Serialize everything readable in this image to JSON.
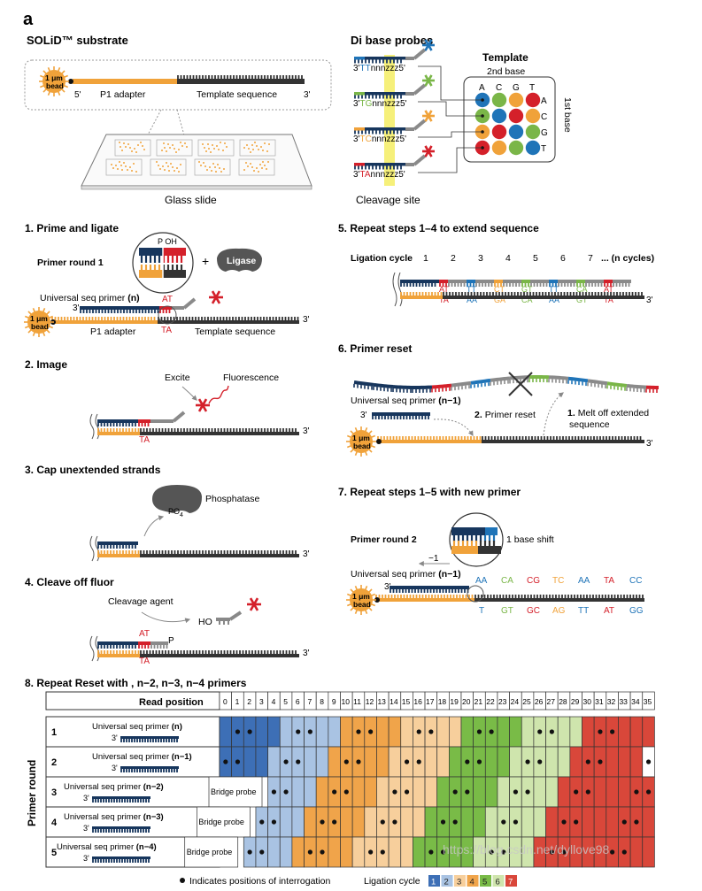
{
  "figure_letter": "a",
  "colors": {
    "navy": "#17365d",
    "orange": "#f0a23a",
    "dark": "#333333",
    "gray": "#8a8a8a",
    "red": "#d4202a",
    "blue": "#1f74b8",
    "green": "#7ab648",
    "yellow_highlight": "#f6f07a",
    "grid_blue_dark": "#3d6fb6",
    "grid_blue_light": "#a9c3e3",
    "grid_orange_light": "#f7cf9c",
    "grid_orange": "#f0a44a",
    "grid_green_dark": "#79bb47",
    "grid_green_light": "#cfe5ad",
    "grid_red": "#d9473a"
  },
  "substrate": {
    "title": "SOLiD™ substrate",
    "bead_line1": "1 μm",
    "bead_line2": "bead",
    "five_prime": "5'",
    "three_prime": "3'",
    "p1_adapter": "P1 adapter",
    "template_sequence": "Template sequence",
    "glass_slide": "Glass slide"
  },
  "probes": {
    "title": "Di base probes",
    "template_title": "Template",
    "second_base": "2nd base",
    "first_base": "1st base",
    "cleavage_site": "Cleavage site",
    "probe_labels": [
      {
        "prefix": "3'",
        "bases": "TT",
        "rest": "nnnzzz5'",
        "color": "#1f74b8"
      },
      {
        "prefix": "3'",
        "bases": "TG",
        "rest": "nnnzzz5'",
        "color": "#7ab648"
      },
      {
        "prefix": "3'",
        "bases": "TC",
        "rest": "nnnzzz5'",
        "color": "#f0a23a"
      },
      {
        "prefix": "3'",
        "bases": "TA",
        "rest": "nnnzzz5'",
        "color": "#d4202a"
      }
    ],
    "columns": [
      "A",
      "C",
      "G",
      "T"
    ],
    "rows": [
      "A",
      "C",
      "G",
      "T"
    ]
  },
  "step1": {
    "title": "1. Prime and ligate",
    "primer_round": "Primer round 1",
    "p_oh": "P OH",
    "plus": "+",
    "ligase": "Ligase",
    "universal_primer": "Universal seq primer ",
    "universal_primer_n": "(n)",
    "three_prime": "3'",
    "at": "AT",
    "ta": "TA",
    "p1_adapter": "P1 adapter",
    "template_sequence": "Template sequence"
  },
  "step2": {
    "title": "2. Image",
    "excite": "Excite",
    "fluorescence": "Fluorescence",
    "ta": "TA",
    "three_prime": "3'"
  },
  "step3": {
    "title": "3. Cap unextended strands",
    "phosphatase": "Phosphatase",
    "po4": "PO",
    "po4_sub": "4",
    "three_prime": "3'"
  },
  "step4": {
    "title": "4. Cleave off fluor",
    "cleavage_agent": "Cleavage agent",
    "ho": "HO",
    "at": "AT",
    "p": "P",
    "ta": "TA",
    "three_prime": "3'"
  },
  "step5": {
    "title": "5. Repeat steps 1–4 to extend sequence",
    "ligation_cycle": "Ligation cycle",
    "cycle_numbers": [
      "1",
      "2",
      "3",
      "4",
      "5",
      "6",
      "7"
    ],
    "n_cycles": "... (n cycles)",
    "top_pairs": [
      "AT",
      "TT",
      "CT",
      "GT",
      "TT",
      "CA",
      "AT"
    ],
    "bottom_pairs": [
      "TA",
      "AA",
      "GA",
      "CA",
      "AA",
      "GT",
      "TA"
    ],
    "three_prime": "3'"
  },
  "step6": {
    "title": "6. Primer reset",
    "universal_primer": "Universal seq primer ",
    "universal_primer_n": "(n−1)",
    "three_prime": "3'",
    "step2_num": "2.",
    "primer_reset": "Primer reset",
    "step1_num": "1.",
    "melt_line1": "Melt off extended",
    "melt_line2": "sequence"
  },
  "step7": {
    "title": "7. Repeat steps 1–5 with new primer",
    "primer_round": "Primer round 2",
    "base_shift": "1 base shift",
    "minus_one": "−1",
    "universal_primer": "Universal seq primer ",
    "universal_primer_n": "(n−1)",
    "three_prime": "3'",
    "top_pairs": [
      "AA",
      "CA",
      "CG",
      "TC",
      "AA",
      "TA",
      "CC"
    ],
    "bottom_pairs": [
      "T",
      "GT",
      "GC",
      "AG",
      "TT",
      "AT",
      "GG"
    ]
  },
  "step8": {
    "title": "8. Repeat Reset with , n−2, n−3, n−4 primers",
    "read_position": "Read position",
    "primer_round_axis": "Primer round",
    "positions": [
      "0",
      "1",
      "2",
      "3",
      "4",
      "5",
      "6",
      "7",
      "8",
      "9",
      "10",
      "11",
      "12",
      "13",
      "14",
      "15",
      "16",
      "17",
      "18",
      "19",
      "20",
      "21",
      "22",
      "23",
      "24",
      "25",
      "26",
      "27",
      "28",
      "29",
      "30",
      "31",
      "32",
      "33",
      "34",
      "35"
    ],
    "rounds": [
      {
        "num": "1",
        "label": "Universal seq primer ",
        "suffix": "(n)",
        "bridge": ""
      },
      {
        "num": "2",
        "label": "Universal seq primer ",
        "suffix": "(n−1)",
        "bridge": ""
      },
      {
        "num": "3",
        "label": "Universal seq primer ",
        "suffix": "(n−2)",
        "bridge": "Bridge probe"
      },
      {
        "num": "4",
        "label": "Universal seq primer ",
        "suffix": "(n−3)",
        "bridge": "Bridge probe"
      },
      {
        "num": "5",
        "label": "Universal seq primer ",
        "suffix": "(n−4)",
        "bridge": "Bridge probe"
      }
    ],
    "three_prime": "3'",
    "legend_dot": "Indicates positions of interrogation",
    "legend_cycle": "Ligation cycle",
    "legend_cycle_numbers": [
      "1",
      "2",
      "3",
      "4",
      "5",
      "6",
      "7"
    ]
  },
  "watermark": "https://blog.csdn.net/dyllove98"
}
